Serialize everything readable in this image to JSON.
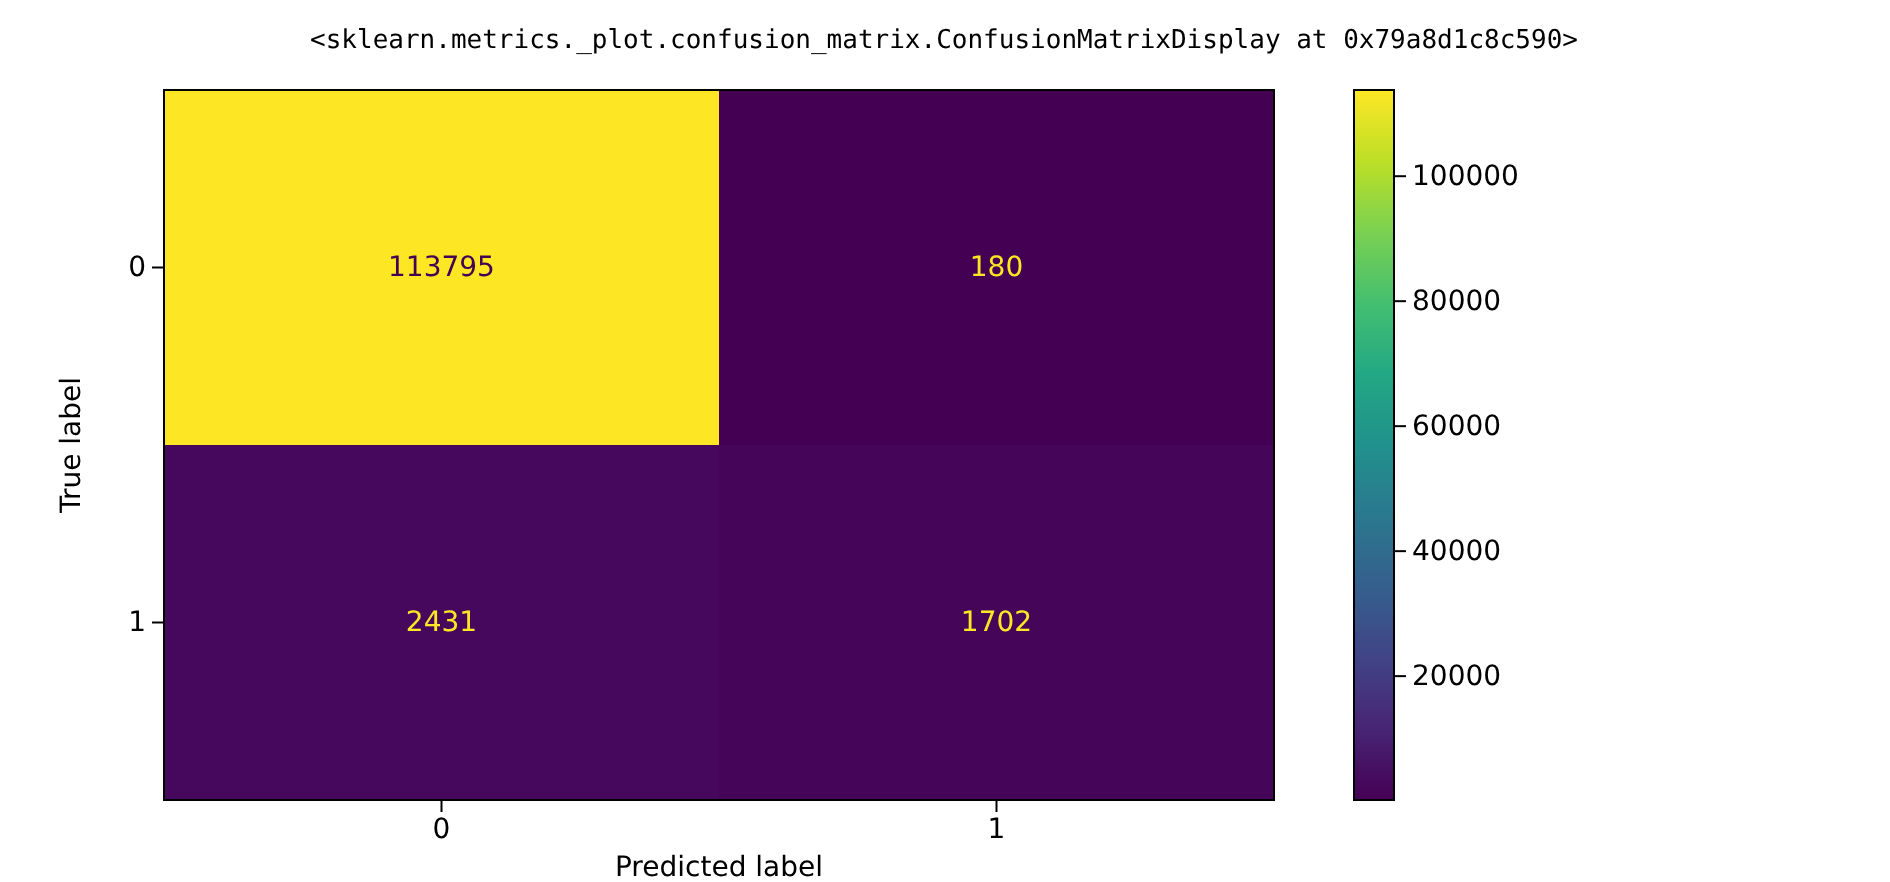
{
  "chart_data": {
    "type": "heatmap",
    "annotations": [
      "<sklearn.metrics._plot.confusion_matrix.ConfusionMatrixDisplay at 0x79a8d1c8c590>"
    ],
    "xlabel": "Predicted label",
    "ylabel": "True label",
    "categories": [
      "0",
      "1"
    ],
    "y_categories": [
      "0",
      "1"
    ],
    "cells": [
      [
        113795,
        180
      ],
      [
        2431,
        1702
      ]
    ],
    "data_labels": true,
    "clim": [
      180,
      113795
    ],
    "cticks": [
      20000,
      40000,
      60000,
      80000,
      100000
    ]
  }
}
